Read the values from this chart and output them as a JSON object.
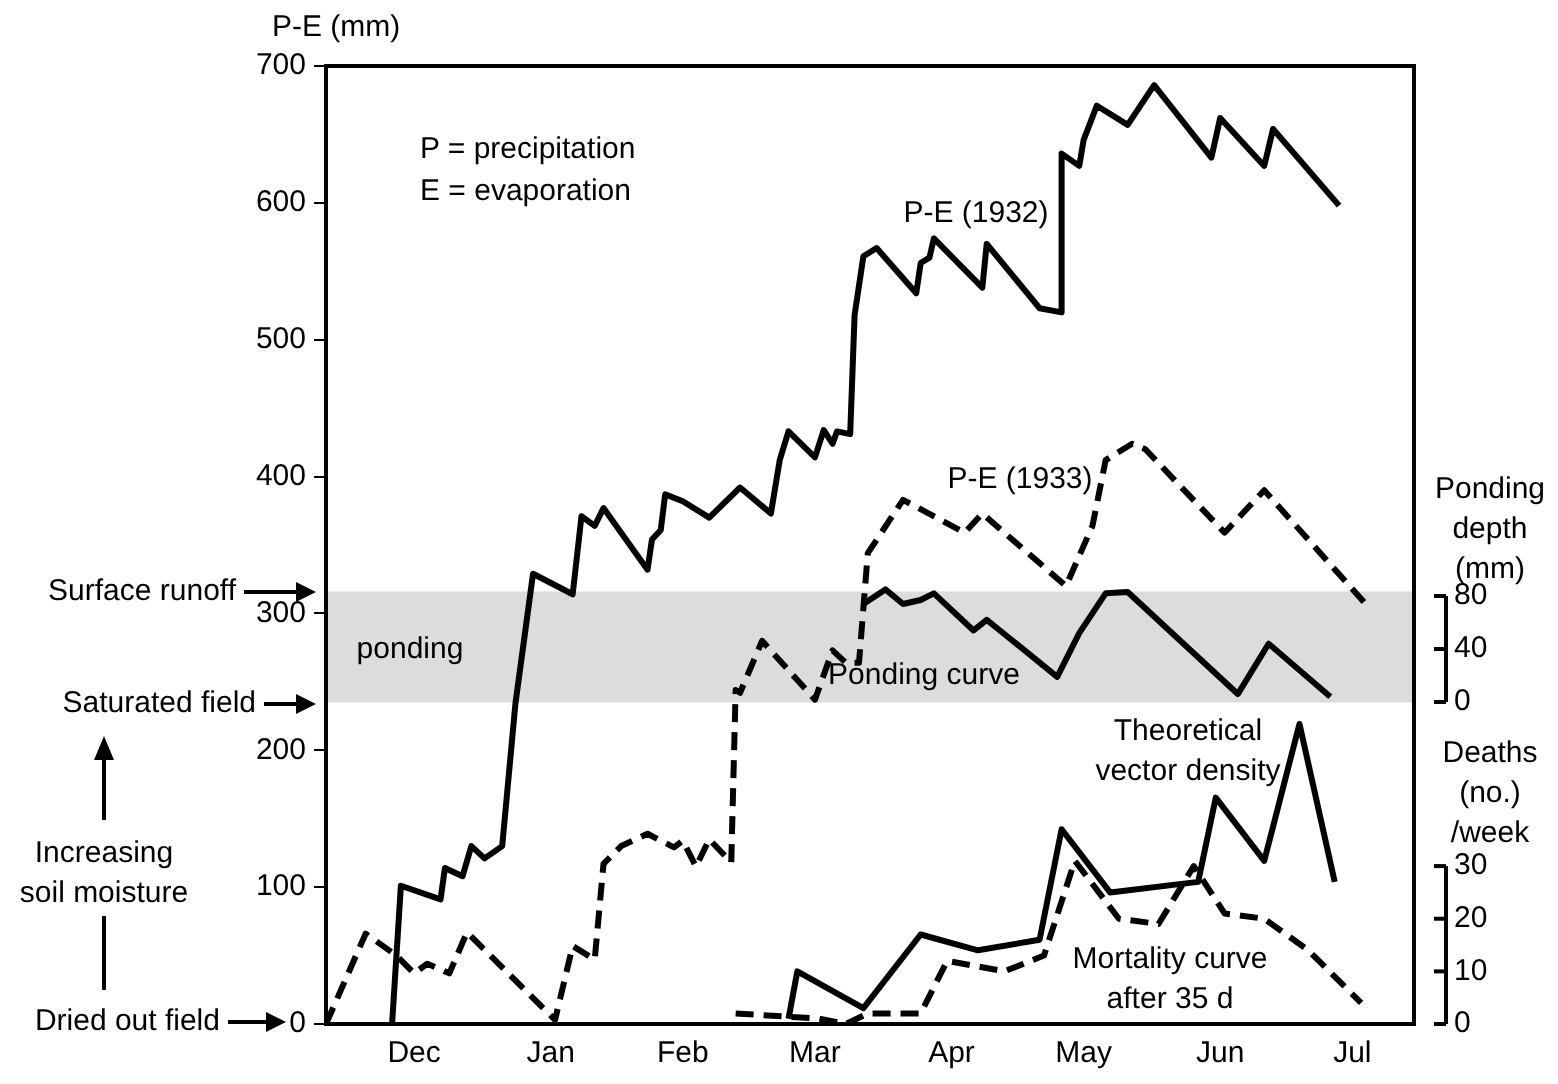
{
  "chart_data": {
    "type": "line",
    "ylabel": "P-E (mm)",
    "y2label": "Ponding depth (mm)",
    "y3label": "Deaths (no.) /week",
    "xlim": [
      "1931-11-26",
      "1932-07-30"
    ],
    "xticks": [
      {
        "value": "1931-12-16",
        "label": "Dec"
      },
      {
        "value": "1932-01-16",
        "label": "Jan"
      },
      {
        "value": "1932-02-15",
        "label": "Feb"
      },
      {
        "value": "1932-03-16",
        "label": "Mar"
      },
      {
        "value": "1932-04-16",
        "label": "Apr"
      },
      {
        "value": "1932-05-16",
        "label": "May"
      },
      {
        "value": "1932-06-16",
        "label": "Jun"
      },
      {
        "value": "1932-07-16",
        "label": "Jul"
      }
    ],
    "ylim": [
      0,
      700
    ],
    "yticks": [
      0,
      100,
      200,
      300,
      400,
      500,
      600,
      700
    ],
    "y2lim": [
      -243,
      480
    ],
    "y2ticks": [
      0,
      40,
      80
    ],
    "y3lim": [
      0,
      182
    ],
    "y3ticks": [
      0,
      10,
      20,
      30
    ],
    "marker": "none",
    "bands": [
      {
        "axis": "y",
        "from": 235,
        "to": 316,
        "label": "ponding",
        "color": "#dcdcdc"
      }
    ],
    "annotations": [
      "P = precipitation",
      "E = evaporation",
      "Surface runoff",
      "Saturated field",
      "Increasing soil moisture",
      "Dried out field"
    ],
    "series": [
      {
        "name": "P-E (1932)",
        "color": "#000000",
        "line_style": "solid",
        "x": [
          "1931-12-11",
          "1931-12-13",
          "1931-12-22",
          "1931-12-23",
          "1931-12-27",
          "1931-12-29",
          "1932-01-01",
          "1932-01-05",
          "1932-01-08",
          "1932-01-12",
          "1932-01-21",
          "1932-01-23",
          "1932-01-26",
          "1932-01-28",
          "1932-02-07",
          "1932-02-08",
          "1932-02-10",
          "1932-02-11",
          "1932-02-15",
          "1932-02-21",
          "1932-02-28",
          "1932-03-06",
          "1932-03-08",
          "1932-03-10",
          "1932-03-16",
          "1932-03-18",
          "1932-03-20",
          "1932-03-21",
          "1932-03-24",
          "1932-03-25",
          "1932-03-27",
          "1932-03-30",
          "1932-04-08",
          "1932-04-09",
          "1932-04-11",
          "1932-04-12",
          "1932-04-23",
          "1932-04-24",
          "1932-05-06",
          "1932-05-11",
          "1932-05-11",
          "1932-05-15",
          "1932-05-16",
          "1932-05-19",
          "1932-05-26",
          "1932-06-01",
          "1932-06-14",
          "1932-06-16",
          "1932-06-26",
          "1932-06-28",
          "1932-07-13"
        ],
        "values": [
          0,
          101,
          91,
          114,
          108,
          130,
          121,
          130,
          234,
          329,
          314,
          371,
          364,
          377,
          332,
          354,
          361,
          387,
          382,
          370,
          392,
          373,
          412,
          433,
          414,
          434,
          424,
          433,
          431,
          518,
          561,
          567,
          534,
          556,
          560,
          574,
          538,
          570,
          523,
          520,
          636,
          627,
          646,
          671,
          657,
          686,
          633,
          662,
          627,
          654,
          598
        ]
      },
      {
        "name": "P-E (1933)",
        "color": "#000000",
        "line_style": "dashed",
        "x": [
          "1931-11-26",
          "1931-12-05",
          "1931-12-12",
          "1931-12-16",
          "1931-12-19",
          "1931-12-24",
          "1931-12-28",
          "1932-01-17",
          "1932-01-21",
          "1932-01-26",
          "1932-01-28",
          "1932-02-01",
          "1932-02-07",
          "1932-02-13",
          "1932-02-15",
          "1932-02-18",
          "1932-02-21",
          "1932-02-26",
          "1932-02-27",
          "1932-02-28",
          "1932-03-04",
          "1932-03-16",
          "1932-03-20",
          "1932-03-23",
          "1932-03-26",
          "1932-03-28",
          "1932-04-05",
          "1932-04-19",
          "1932-04-23",
          "1932-05-12",
          "1932-05-18",
          "1932-05-21",
          "1932-05-27",
          "1932-05-30",
          "1932-06-17",
          "1932-06-26",
          "1932-07-19"
        ],
        "values": [
          0,
          66,
          50,
          37,
          44,
          37,
          67,
          3,
          57,
          47,
          117,
          130,
          139,
          129,
          134,
          115,
          135,
          118,
          244,
          242,
          280,
          237,
          273,
          264,
          264,
          344,
          383,
          359,
          373,
          320,
          364,
          412,
          424,
          420,
          359,
          390,
          307
        ]
      },
      {
        "name": "Ponding curve",
        "color": "#000000",
        "line_style": "solid",
        "axis": "y2",
        "x": [
          "1932-03-27",
          "1932-04-01",
          "1932-04-05",
          "1932-04-09",
          "1932-04-12",
          "1932-04-21",
          "1932-04-24",
          "1932-04-27",
          "1932-05-10",
          "1932-05-15",
          "1932-05-21",
          "1932-05-26",
          "1932-06-20",
          "1932-06-27",
          "1932-07-11"
        ],
        "values": [
          74,
          85,
          74,
          77,
          82,
          54,
          62,
          54,
          19,
          52,
          82,
          83,
          6,
          44,
          4
        ]
      },
      {
        "name": "Theoretical vector density",
        "color": "#000000",
        "line_style": "solid",
        "axis": "y3",
        "x": [
          "1932-03-10",
          "1932-03-12",
          "1932-03-27",
          "1932-04-09",
          "1932-04-22",
          "1932-05-06",
          "1932-05-11",
          "1932-05-22",
          "1932-06-11",
          "1932-06-15",
          "1932-06-26",
          "1932-07-04",
          "1932-07-12"
        ],
        "values": [
          1,
          10,
          3,
          17,
          14,
          16,
          37,
          25,
          27,
          43,
          31,
          57,
          27
        ]
      },
      {
        "name": "Mortality curve after 35 d",
        "color": "#000000",
        "line_style": "dashed",
        "axis": "y3",
        "x": [
          "1932-02-27",
          "1932-03-17",
          "1932-03-23",
          "1932-03-28",
          "1932-04-09",
          "1932-04-15",
          "1932-04-28",
          "1932-05-07",
          "1932-05-14",
          "1932-05-24",
          "1932-06-02",
          "1932-06-10",
          "1932-06-17",
          "1932-06-26",
          "1932-07-06",
          "1932-07-18"
        ],
        "values": [
          2,
          1,
          0,
          2,
          2,
          12,
          10,
          13,
          31,
          20,
          19,
          30,
          21,
          20,
          14,
          4
        ]
      }
    ]
  }
}
